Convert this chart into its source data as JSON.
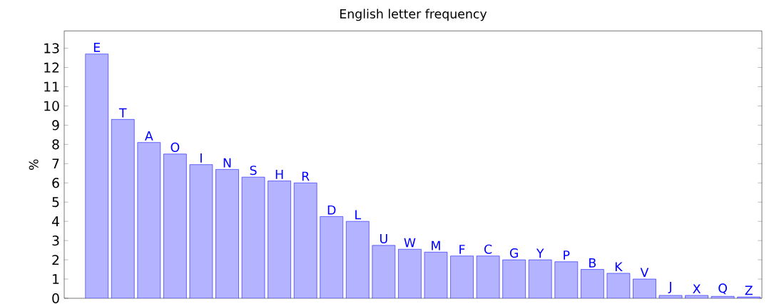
{
  "chart_data": {
    "type": "bar",
    "title": "English letter frequency",
    "ylabel": "%",
    "categories": [
      "E",
      "T",
      "A",
      "O",
      "I",
      "N",
      "S",
      "H",
      "R",
      "D",
      "L",
      "U",
      "W",
      "M",
      "F",
      "C",
      "G",
      "Y",
      "P",
      "B",
      "K",
      "V",
      "J",
      "X",
      "Q",
      "Z"
    ],
    "values": [
      12.7,
      9.3,
      8.1,
      7.5,
      6.95,
      6.7,
      6.3,
      6.1,
      6.0,
      4.25,
      4.0,
      2.75,
      2.55,
      2.4,
      2.2,
      2.2,
      2.0,
      2.0,
      1.9,
      1.5,
      1.3,
      1.0,
      0.15,
      0.15,
      0.1,
      0.07
    ],
    "color": "#b3b3ff",
    "ylim": [
      0,
      13.9
    ],
    "yticks": [
      0,
      1,
      2,
      3,
      4,
      5,
      6,
      7,
      8,
      9,
      10,
      11,
      12,
      13
    ]
  }
}
